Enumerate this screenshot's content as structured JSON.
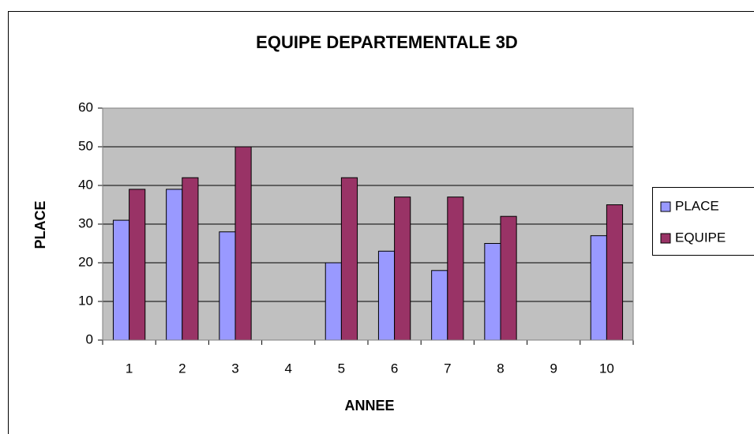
{
  "chart_data": {
    "type": "bar",
    "title": "EQUIPE DEPARTEMENTALE 3D",
    "x_label": "ANNEE",
    "y_label": "PLACE",
    "categories": [
      "1",
      "2",
      "3",
      "4",
      "5",
      "6",
      "7",
      "8",
      "9",
      "10"
    ],
    "series": [
      {
        "name": "PLACE",
        "color": "#9999ff",
        "values": [
          31,
          39,
          28,
          null,
          20,
          23,
          18,
          25,
          null,
          27
        ]
      },
      {
        "name": "EQUIPE",
        "color": "#993366",
        "values": [
          39,
          42,
          50,
          null,
          42,
          37,
          37,
          32,
          null,
          35
        ]
      }
    ],
    "ylim": [
      0,
      60
    ],
    "yticks": [
      0,
      10,
      20,
      30,
      40,
      50,
      60
    ],
    "grid": true,
    "legend": "right",
    "plot_background": "#c0c0c0"
  }
}
